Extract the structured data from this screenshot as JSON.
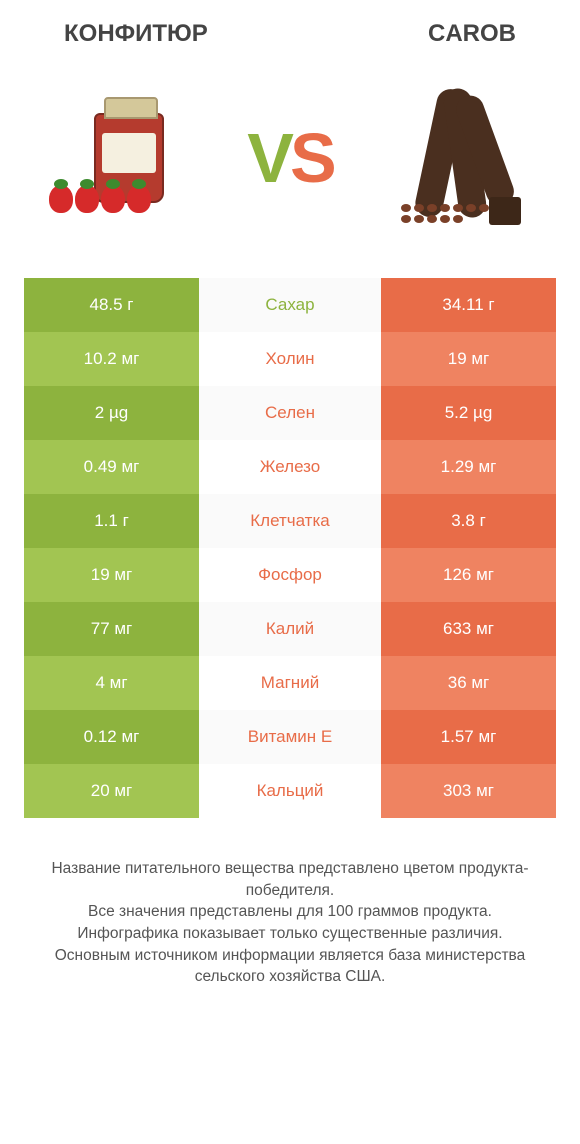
{
  "header": {
    "left_title": "КОНФИТЮР",
    "right_title": "CAROB"
  },
  "vs": {
    "v": "V",
    "s": "S"
  },
  "colors": {
    "green_dark": "#8db33e",
    "green_light": "#a2c552",
    "orange_dark": "#e86c48",
    "orange_light": "#ef8361",
    "nutrient_green": "#8db33e",
    "nutrient_orange": "#e86c48"
  },
  "rows": [
    {
      "left": "48.5 г",
      "nutrient": "Сахар",
      "right": "34.11 г",
      "winner": "left"
    },
    {
      "left": "10.2 мг",
      "nutrient": "Холин",
      "right": "19 мг",
      "winner": "right"
    },
    {
      "left": "2 µg",
      "nutrient": "Селен",
      "right": "5.2 µg",
      "winner": "right"
    },
    {
      "left": "0.49 мг",
      "nutrient": "Железо",
      "right": "1.29 мг",
      "winner": "right"
    },
    {
      "left": "1.1 г",
      "nutrient": "Клетчатка",
      "right": "3.8 г",
      "winner": "right"
    },
    {
      "left": "19 мг",
      "nutrient": "Фосфор",
      "right": "126 мг",
      "winner": "right"
    },
    {
      "left": "77 мг",
      "nutrient": "Калий",
      "right": "633 мг",
      "winner": "right"
    },
    {
      "left": "4 мг",
      "nutrient": "Магний",
      "right": "36 мг",
      "winner": "right"
    },
    {
      "left": "0.12 мг",
      "nutrient": "Витамин E",
      "right": "1.57 мг",
      "winner": "right"
    },
    {
      "left": "20 мг",
      "nutrient": "Кальций",
      "right": "303 мг",
      "winner": "right"
    }
  ],
  "footer": {
    "line1": "Название питательного вещества представлено цветом продукта-победителя.",
    "line2": "Все значения представлены для 100 граммов продукта.",
    "line3": "Инфографика показывает только существенные различия.",
    "line4": "Основным источником информации является база министерства сельского хозяйства США."
  }
}
